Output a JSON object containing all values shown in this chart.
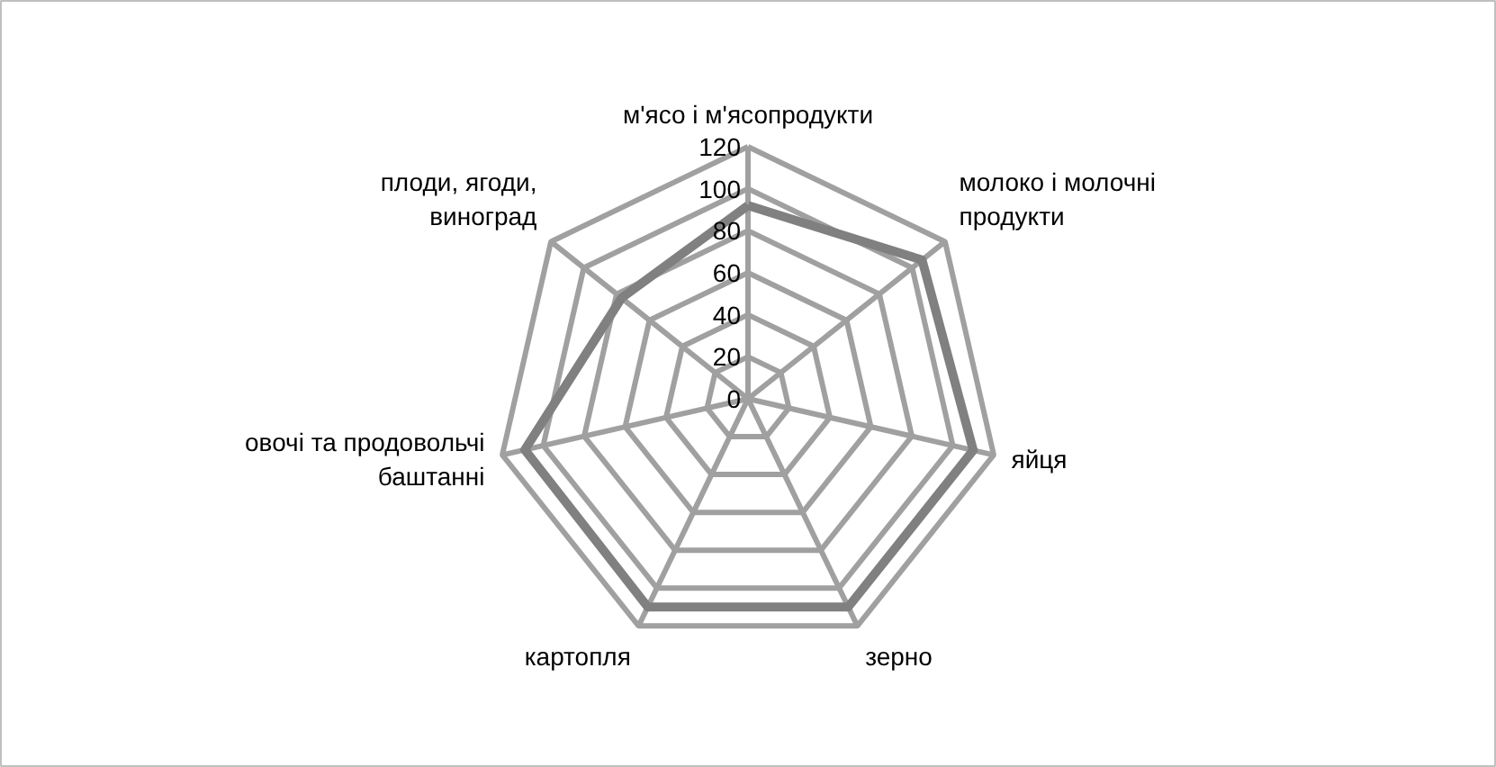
{
  "chart_data": {
    "type": "radar",
    "categories": [
      "м'ясо і м'ясопродукти",
      "молоко і молочні продукти",
      "яйця",
      "зерно",
      "картопля",
      "овочі та продовольчі баштанні",
      "плоди, ягоди, виноград"
    ],
    "series": [
      {
        "color": "#808080",
        "values": [
          92,
          106,
          110,
          110,
          110,
          109,
          77
        ]
      }
    ],
    "ylim": [
      0,
      120
    ],
    "yticks": [
      0,
      20,
      40,
      60,
      80,
      100,
      120
    ],
    "grid": true
  }
}
